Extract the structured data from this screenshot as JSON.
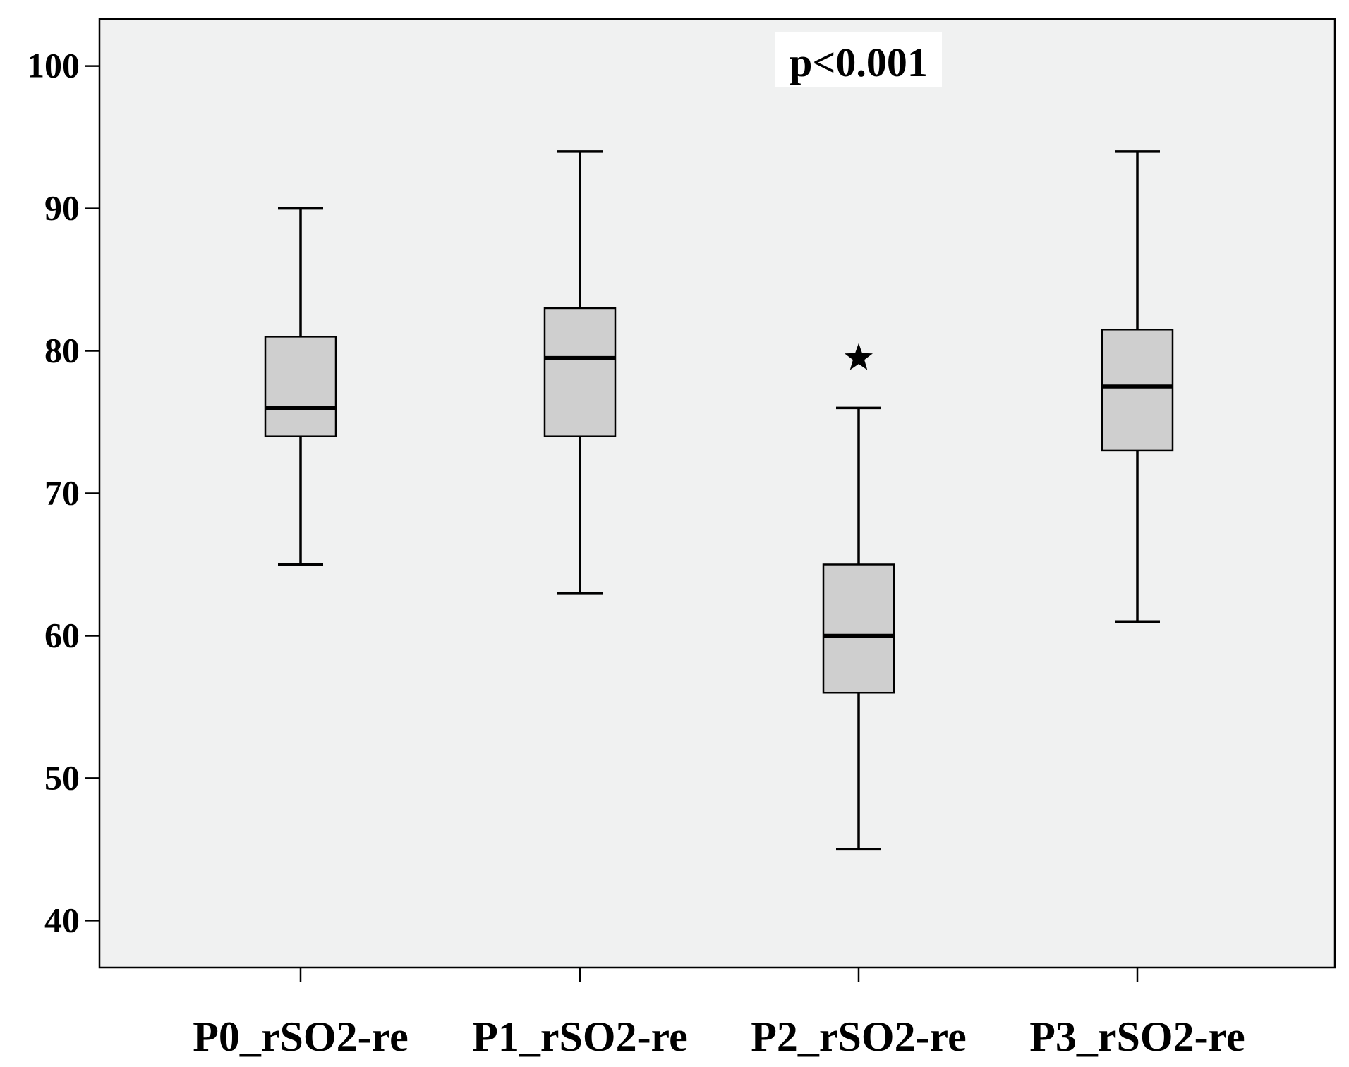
{
  "chart_data": {
    "type": "boxplot",
    "title": "",
    "xlabel": "",
    "ylabel": "",
    "ylim": [
      36.7,
      103.3
    ],
    "yticks": [
      40,
      50,
      60,
      70,
      80,
      90,
      100
    ],
    "grid": false,
    "annotation": "p<0.001",
    "categories": [
      "P0_rSO2-re",
      "P1_rSO2-re",
      "P2_rSO2-re",
      "P3_rSO2-re"
    ],
    "boxes": [
      {
        "whisker_low": 65,
        "q1": 74,
        "median": 76,
        "q3": 81,
        "whisker_high": 90,
        "outliers": []
      },
      {
        "whisker_low": 63,
        "q1": 74,
        "median": 79.5,
        "q3": 83,
        "whisker_high": 94,
        "outliers": []
      },
      {
        "whisker_low": 45,
        "q1": 56,
        "median": 60,
        "q3": 65,
        "whisker_high": 76,
        "outliers": [
          79.5
        ]
      },
      {
        "whisker_low": 61,
        "q1": 73,
        "median": 77.5,
        "q3": 81.5,
        "whisker_high": 94,
        "outliers": []
      }
    ],
    "colors": {
      "plot_background": "#f0f1f1",
      "box_fill": "#cfcfcf",
      "line": "#000000"
    },
    "outlier_marker": "star"
  }
}
